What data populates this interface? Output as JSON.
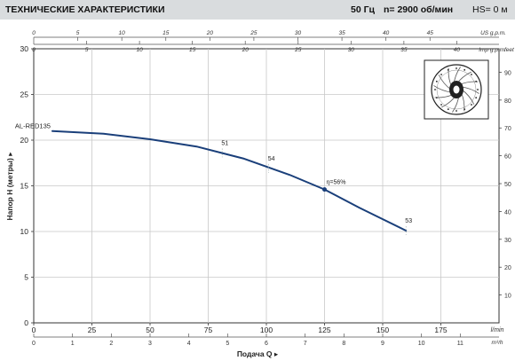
{
  "header": {
    "title": "ТЕХНИЧЕСКИЕ ХАРАКТЕРИСТИКИ",
    "frequency": "50 Гц",
    "speed": "n= 2900  об/мин",
    "hs": "HS= 0 м"
  },
  "chart_data": {
    "type": "line",
    "ylabel": "Напор H (метры)",
    "xlabel": "Подача Q",
    "x_unit_bottom": "l/min",
    "x_unit_m3h": "m³/h",
    "x_unit_usgpm": "US g.p.m.",
    "x_unit_ukgpm": "Imp g.p.m.",
    "y_unit_feet": "feet",
    "xlim": [
      0,
      200
    ],
    "ylim": [
      0,
      30
    ],
    "grid": true,
    "x_ticks_lmin": [
      "0",
      "25",
      "50",
      "75",
      "100",
      "125",
      "150",
      "175",
      "l/min"
    ],
    "x_ticks_m3h": [
      "0",
      "1",
      "2",
      "3",
      "4",
      "5",
      "6",
      "7",
      "8",
      "9",
      "10",
      "11",
      "m³/h"
    ],
    "x_ticks_usgpm": [
      "0",
      "5",
      "10",
      "15",
      "20",
      "25",
      "30",
      "35",
      "40",
      "45",
      "US g.p.m."
    ],
    "x_ticks_ukgpm": [
      "0",
      "5",
      "10",
      "15",
      "20",
      "25",
      "30",
      "35",
      "40",
      "Imp g.p.m."
    ],
    "y_ticks_m": [
      "0",
      "5",
      "10",
      "15",
      "20",
      "25",
      "30"
    ],
    "y_ticks_feet": [
      "10",
      "20",
      "30",
      "40",
      "50",
      "60",
      "70",
      "80",
      "90",
      "feet"
    ],
    "series": [
      {
        "name": "AL-RED135",
        "x": [
          8,
          30,
          50,
          70,
          90,
          110,
          125,
          140,
          160
        ],
        "y": [
          21.0,
          20.7,
          20.1,
          19.3,
          18.0,
          16.2,
          14.6,
          12.6,
          10.1
        ]
      }
    ],
    "annotations": [
      {
        "text": "51",
        "x": 81,
        "y": 18.6
      },
      {
        "text": "54",
        "x": 101,
        "y": 16.9
      },
      {
        "text": "η=56%",
        "x": 125,
        "y": 14.6
      },
      {
        "text": "53",
        "x": 160,
        "y": 10.1
      }
    ],
    "line_color": "#1a3f7a",
    "grid_color": "#c8c8c8"
  }
}
